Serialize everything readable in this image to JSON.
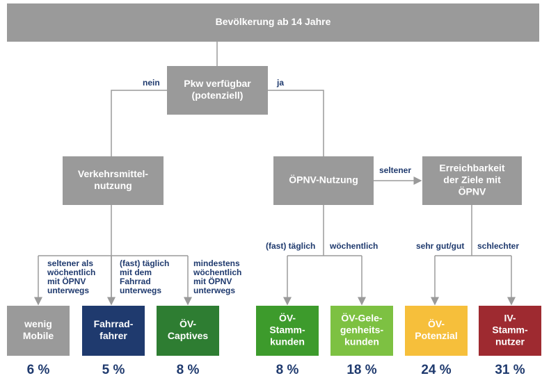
{
  "root": {
    "label": [
      "Bevölkerung ab 14 Jahre"
    ]
  },
  "nodes": [
    {
      "label": [
        "Pkw verfügbar",
        "(potenziell)"
      ]
    },
    {
      "label": [
        "Verkehrsmittel-",
        "nutzung"
      ]
    },
    {
      "label": [
        "ÖPNV-Nutzung"
      ]
    },
    {
      "label": [
        "Erreichbarkeit",
        "der Ziele mit",
        "ÖPNV"
      ]
    }
  ],
  "edge_labels": [
    {
      "label": [
        "nein"
      ]
    },
    {
      "label": [
        "ja"
      ]
    },
    {
      "label": [
        "seltener"
      ]
    },
    {
      "label": [
        "seltener als",
        "wöchentlich",
        "mit ÖPNV",
        "unterwegs"
      ]
    },
    {
      "label": [
        "(fast) täglich",
        "mit dem",
        "Fahrrad",
        "unterwegs"
      ]
    },
    {
      "label": [
        "mindestens",
        "wöchentlich",
        "mit ÖPNV",
        "unterwegs"
      ]
    },
    {
      "label": [
        "(fast) täglich"
      ]
    },
    {
      "label": [
        "wöchentlich"
      ]
    },
    {
      "label": [
        "sehr gut/gut"
      ]
    },
    {
      "label": [
        "schlechter"
      ]
    }
  ],
  "leaves": [
    {
      "label": [
        "wenig",
        "Mobile"
      ],
      "share": "6 %",
      "color": "#9a9a9a"
    },
    {
      "label": [
        "Fahrrad-",
        "fahrer"
      ],
      "share": "5 %",
      "color": "#1f3a6e"
    },
    {
      "label": [
        "ÖV-",
        "Captives"
      ],
      "share": "8 %",
      "color": "#2e7d32"
    },
    {
      "label": [
        "ÖV-",
        "Stamm-",
        "kunden"
      ],
      "share": "8 %",
      "color": "#3d9b2c"
    },
    {
      "label": [
        "ÖV-Gele-",
        "genheits-",
        "kunden"
      ],
      "share": "18 %",
      "color": "#7dc142"
    },
    {
      "label": [
        "ÖV-",
        "Potenzial"
      ],
      "share": "24 %",
      "color": "#f6bf3b"
    },
    {
      "label": [
        "IV-",
        "Stamm-",
        "nutzer"
      ],
      "share": "31 %",
      "color": "#9e2a30"
    }
  ]
}
